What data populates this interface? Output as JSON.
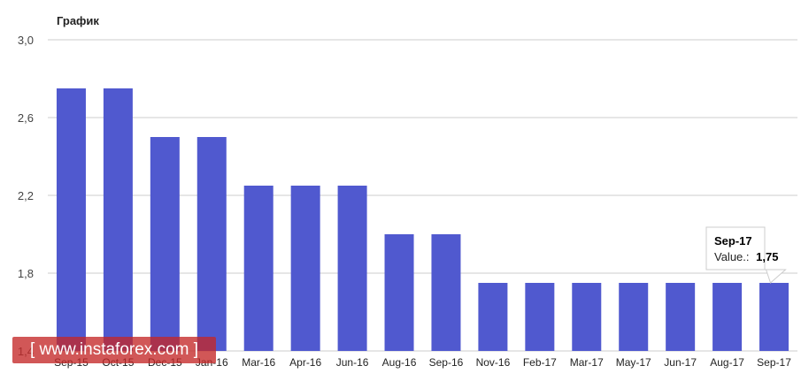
{
  "chart_data": {
    "type": "bar",
    "title": "График",
    "categories": [
      "Sep-15",
      "Oct-15",
      "Dec-15",
      "Jan-16",
      "Mar-16",
      "Apr-16",
      "Jun-16",
      "Aug-16",
      "Sep-16",
      "Nov-16",
      "Feb-17",
      "Mar-17",
      "May-17",
      "Jun-17",
      "Aug-17",
      "Sep-17"
    ],
    "values": [
      2.75,
      2.75,
      2.5,
      2.5,
      2.25,
      2.25,
      2.25,
      2.0,
      2.0,
      1.75,
      1.75,
      1.75,
      1.75,
      1.75,
      1.75,
      1.75
    ],
    "ylim": [
      1.4,
      3.0
    ],
    "yticks": [
      "1,4",
      "1,8",
      "2,2",
      "2,6",
      "3,0"
    ],
    "ytick_values": [
      1.4,
      1.8,
      2.2,
      2.6,
      3.0
    ],
    "grid": true,
    "bar_color": "#5059cf",
    "tooltip": {
      "category": "Sep-17",
      "label": "Value.:",
      "value": "1,75"
    }
  },
  "watermark": {
    "text": "[ www.instaforex.com ]"
  }
}
